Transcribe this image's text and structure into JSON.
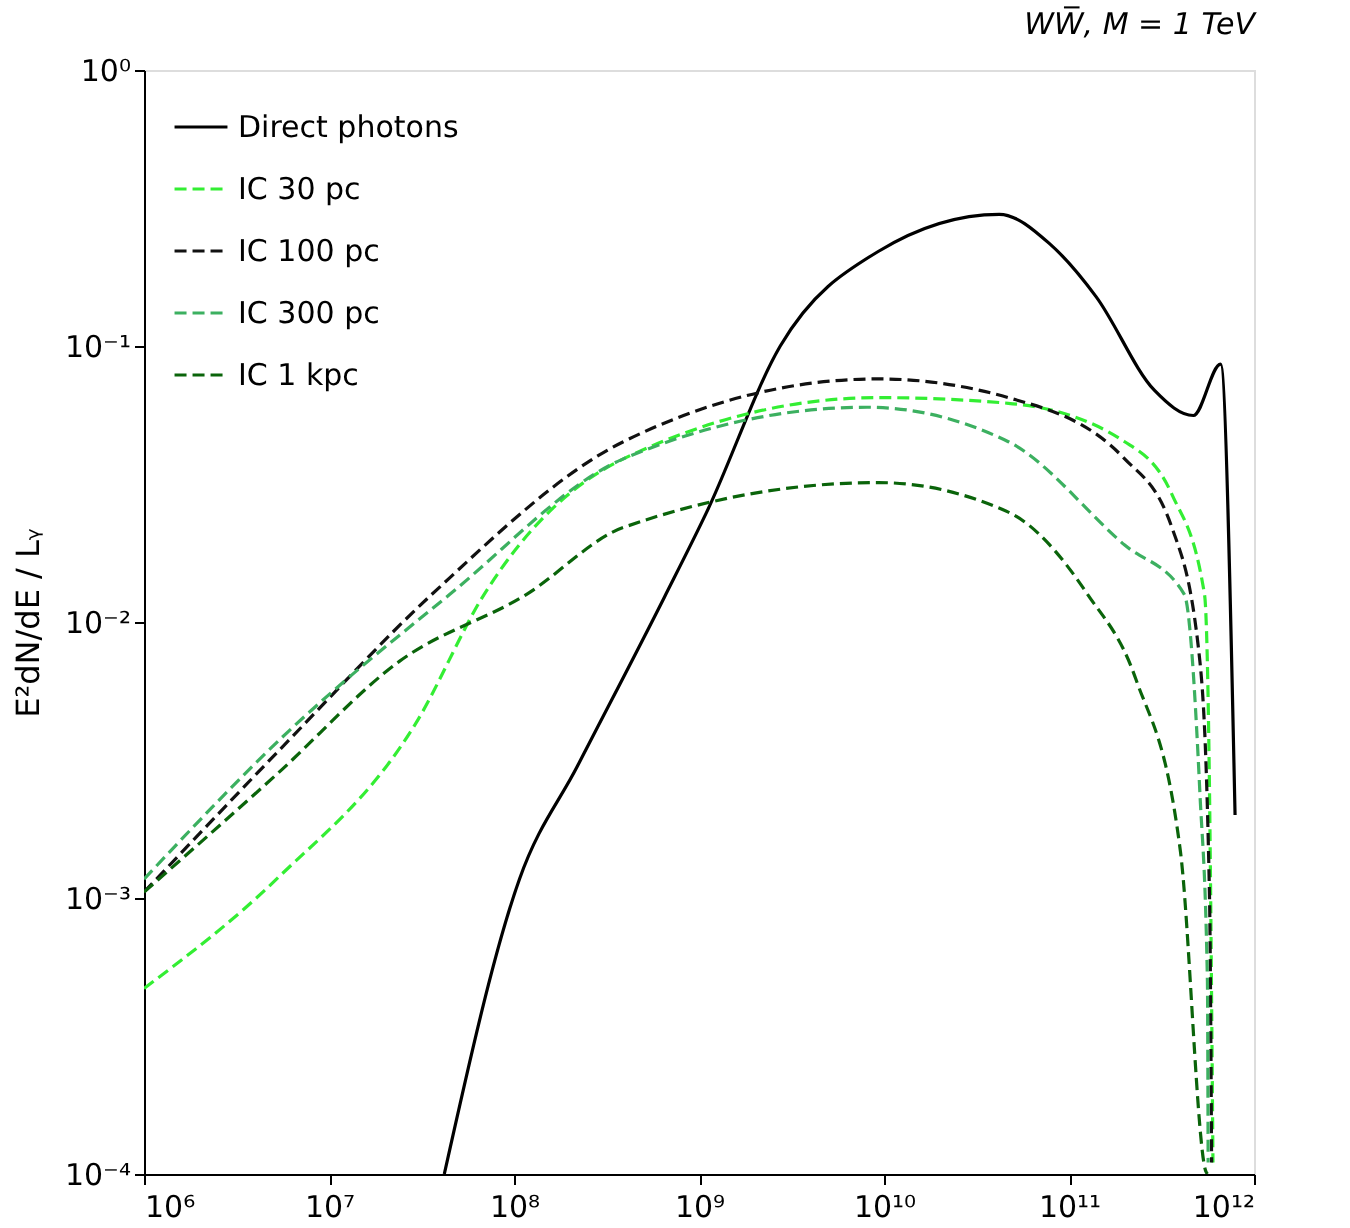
{
  "chart_data": {
    "type": "line",
    "title": "WW̅, M = 1 TeV",
    "ylabel": "E²dN/dE / Lᵧ",
    "log": "xy",
    "grid": false,
    "legend": "top left",
    "xlim": [
      1000000.0,
      1000000000000.0
    ],
    "ylim": [
      0.0001,
      1
    ],
    "xticks": [
      {
        "value": 1000000.0,
        "label": "10⁶"
      },
      {
        "value": 10000000.0,
        "label": "10⁷"
      },
      {
        "value": 100000000.0,
        "label": "10⁸"
      },
      {
        "value": 1000000000.0,
        "label": "10⁹"
      },
      {
        "value": 10000000000.0,
        "label": "10¹⁰"
      },
      {
        "value": 100000000000.0,
        "label": "10¹¹"
      },
      {
        "value": 1000000000000.0,
        "label": "10¹²"
      }
    ],
    "yticks": [
      {
        "value": 0.0001,
        "label": "10⁻⁴"
      },
      {
        "value": 0.001,
        "label": "10⁻³"
      },
      {
        "value": 0.01,
        "label": "10⁻²"
      },
      {
        "value": 0.1,
        "label": "10⁻¹"
      },
      {
        "value": 1,
        "label": "10⁰"
      }
    ],
    "series": [
      {
        "name": "Direct photons",
        "color": "#000000",
        "line_style": "solid",
        "x": [
          42000000.0,
          107000000.0,
          220000000.0,
          650000000.0,
          1100000000.0,
          2750000000.0,
          9300000000.0,
          42000000000.0,
          79000000000.0,
          140000000000.0,
          290000000000.0,
          470000000000.0,
          660000000000.0,
          790000000000.0
        ],
        "values": [
          0.0001,
          0.00117,
          0.003,
          0.0123,
          0.025,
          0.1,
          0.22,
          0.3,
          0.234,
          0.151,
          0.069,
          0.056,
          0.086,
          0.002
        ]
      },
      {
        "name": "IC 30 pc",
        "color": "#33ee33",
        "line_style": "dashed",
        "x": [
          1000000.0,
          5200000.0,
          29500000.0,
          69000000.0,
          390000000.0,
          9300000000.0,
          47000000000.0,
          200000000000.0,
          360000000000.0,
          540000000000.0,
          575000000000.0,
          600000000000.0
        ],
        "values": [
          0.00047,
          0.00117,
          0.0043,
          0.0126,
          0.039,
          0.065,
          0.062,
          0.045,
          0.029,
          0.0126,
          0.0024,
          0.00011
        ]
      },
      {
        "name": "IC 100 pc",
        "color": "#111111",
        "line_style": "dashed",
        "x": [
          1000000.0,
          6000000.0,
          36000000.0,
          390000000.0,
          9300000000.0,
          47000000000.0,
          200000000000.0,
          360000000000.0,
          510000000000.0,
          575000000000.0,
          590000000000.0
        ],
        "values": [
          0.00105,
          0.0037,
          0.0126,
          0.045,
          0.076,
          0.065,
          0.039,
          0.022,
          0.0072,
          0.001,
          0.00011
        ]
      },
      {
        "name": "IC 300 pc",
        "color": "#3cb060",
        "line_style": "dashed",
        "x": [
          1000000.0,
          6000000.0,
          45000000.0,
          390000000.0,
          8100000000.0,
          47000000000.0,
          200000000000.0,
          420000000000.0,
          510000000000.0,
          560000000000.0,
          565000000000.0
        ],
        "values": [
          0.00117,
          0.004,
          0.0126,
          0.039,
          0.06,
          0.045,
          0.019,
          0.0126,
          0.0024,
          0.0005,
          0.00011
        ]
      },
      {
        "name": "IC 1 kpc",
        "color": "#0a640a",
        "line_style": "dashed",
        "x": [
          1000000.0,
          5200000.0,
          24000000.0,
          117000000.0,
          390000000.0,
          9300000000.0,
          47000000000.0,
          126000000000.0,
          230000000000.0,
          400000000000.0,
          550000000000.0,
          560000000000.0
        ],
        "values": [
          0.00105,
          0.0028,
          0.0072,
          0.0126,
          0.022,
          0.032,
          0.025,
          0.0126,
          0.0062,
          0.00148,
          0.000102,
          0.0001
        ]
      }
    ]
  }
}
